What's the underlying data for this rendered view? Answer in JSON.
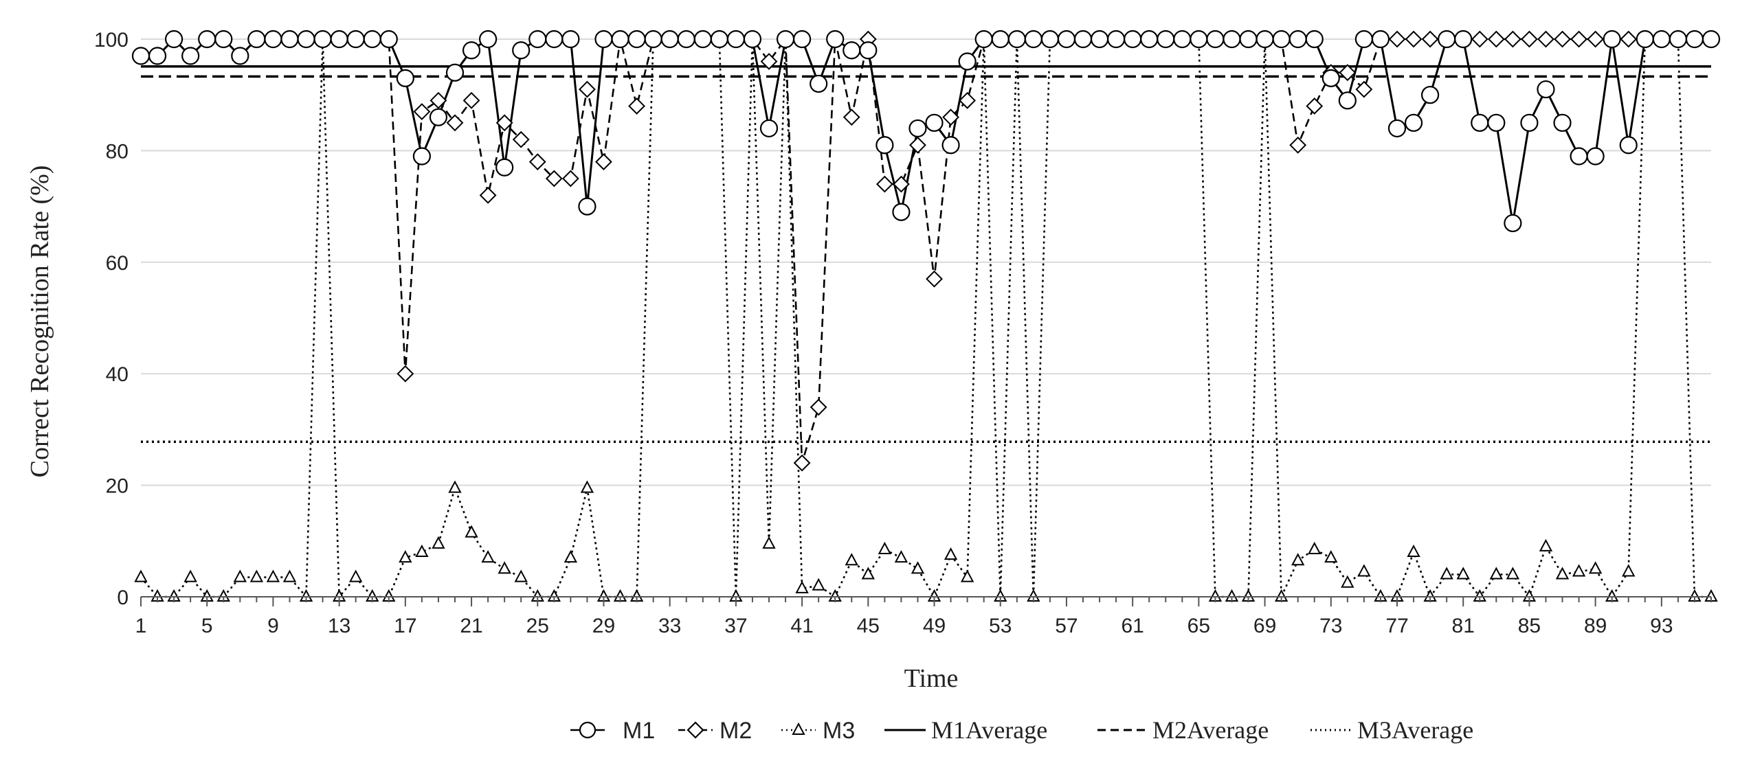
{
  "chart_data": {
    "type": "line",
    "title": "",
    "xlabel": "Time",
    "ylabel": "Correct Recognition Rate (%)",
    "xlim": [
      1,
      96
    ],
    "ylim": [
      0,
      100
    ],
    "yticks": [
      "0",
      "20",
      "40",
      "60",
      "80",
      "100"
    ],
    "xticks": [
      "1",
      "5",
      "9",
      "13",
      "17",
      "21",
      "25",
      "29",
      "33",
      "37",
      "41",
      "45",
      "49",
      "53",
      "57",
      "61",
      "65",
      "69",
      "73",
      "77",
      "81",
      "85",
      "89",
      "93"
    ],
    "grid": "horizontal",
    "legend_position": "bottom",
    "series": [
      {
        "name": "M1",
        "marker": "circle",
        "line": "solid",
        "values": [
          97,
          97,
          100,
          97,
          100,
          100,
          97,
          100,
          100,
          100,
          100,
          100,
          100,
          100,
          100,
          100,
          93,
          79,
          86,
          94,
          98,
          100,
          77,
          98,
          100,
          100,
          100,
          70,
          100,
          100,
          100,
          100,
          100,
          100,
          100,
          100,
          100,
          100,
          84,
          100,
          100,
          92,
          100,
          98,
          98,
          81,
          69,
          84,
          85,
          81,
          96,
          100,
          100,
          100,
          100,
          100,
          100,
          100,
          100,
          100,
          100,
          100,
          100,
          100,
          100,
          100,
          100,
          100,
          100,
          100,
          100,
          100,
          93,
          89,
          100,
          100,
          84,
          85,
          90,
          100,
          100,
          85,
          85,
          67,
          85,
          91,
          85,
          79,
          79,
          100,
          81,
          100,
          100,
          100,
          100,
          100
        ]
      },
      {
        "name": "M2",
        "marker": "diamond",
        "line": "dashed",
        "values": [
          97,
          97,
          100,
          97,
          100,
          100,
          97,
          100,
          100,
          100,
          100,
          100,
          100,
          100,
          100,
          100,
          40,
          87,
          89,
          85,
          89,
          72,
          85,
          82,
          78,
          75,
          75,
          91,
          78,
          100,
          88,
          100,
          100,
          100,
          100,
          100,
          100,
          100,
          96,
          100,
          24,
          34,
          100,
          86,
          100,
          74,
          74,
          81,
          57,
          86,
          89,
          100,
          100,
          100,
          100,
          100,
          100,
          100,
          100,
          100,
          100,
          100,
          100,
          100,
          100,
          100,
          100,
          100,
          100,
          100,
          81,
          88,
          94,
          94,
          91,
          100,
          100,
          100,
          100,
          100,
          100,
          100,
          100,
          100,
          100,
          100,
          100,
          100,
          100,
          100,
          100,
          100,
          100,
          100,
          100,
          100
        ]
      },
      {
        "name": "M3",
        "marker": "triangle",
        "line": "dotted",
        "values": [
          3.5,
          0,
          0,
          3.5,
          0,
          0,
          3.5,
          3.5,
          3.5,
          3.5,
          0,
          100,
          0,
          3.5,
          0,
          0,
          7,
          8,
          9.5,
          19.5,
          11.5,
          7,
          5,
          3.5,
          0,
          0,
          7,
          19.5,
          0,
          0,
          0,
          100,
          100,
          100,
          100,
          100,
          0,
          100,
          9.5,
          100,
          1.5,
          2,
          0,
          6.5,
          4,
          8.5,
          7,
          5,
          0,
          7.5,
          3.5,
          100,
          0,
          100,
          0,
          100,
          100,
          100,
          100,
          100,
          100,
          100,
          100,
          100,
          100,
          0,
          0,
          0,
          100,
          0,
          6.5,
          8.5,
          7,
          2.5,
          4.5,
          0,
          0,
          8,
          0,
          4,
          4,
          0,
          4,
          4,
          0,
          9,
          4,
          4.5,
          5,
          0,
          4.5,
          100,
          100,
          100,
          0,
          0
        ]
      }
    ],
    "averages": [
      {
        "name": "M1Average",
        "line": "solid",
        "value": 95.1
      },
      {
        "name": "M2Average",
        "line": "dashed",
        "value": 93.3
      },
      {
        "name": "M3Average",
        "line": "dotted",
        "value": 27.8
      }
    ]
  }
}
